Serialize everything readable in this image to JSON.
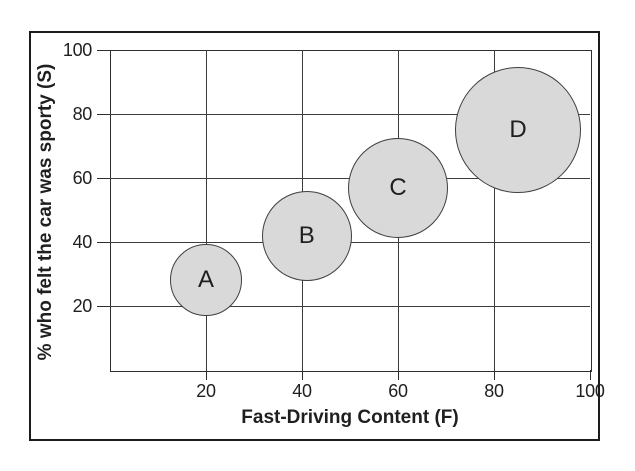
{
  "figure": {
    "background": "#ffffff",
    "frame_border_color": "#1c1c1c"
  },
  "chart_data": {
    "type": "scatter",
    "variant": "bubble",
    "title": "",
    "xlabel": "Fast-Driving Content (F)",
    "ylabel": "% who felt the car was sporty (S)",
    "xlim": [
      0,
      100
    ],
    "ylim": [
      0,
      100
    ],
    "xticks": [
      20,
      40,
      60,
      80,
      100
    ],
    "yticks": [
      20,
      40,
      60,
      80,
      100
    ],
    "grid": true,
    "legend": false,
    "points": [
      {
        "label": "A",
        "x": 20,
        "y": 28,
        "radius_px": 36
      },
      {
        "label": "B",
        "x": 41,
        "y": 42,
        "radius_px": 45
      },
      {
        "label": "C",
        "x": 60,
        "y": 57,
        "radius_px": 50
      },
      {
        "label": "D",
        "x": 85,
        "y": 75,
        "radius_px": 63
      }
    ],
    "style": {
      "bubble_fill": "#d9d9d9",
      "bubble_stroke": "#3f3f3f",
      "grid_color": "#3c3c3c",
      "tick_color": "#2e2e2e",
      "text_color": "#1f1f1f"
    }
  }
}
